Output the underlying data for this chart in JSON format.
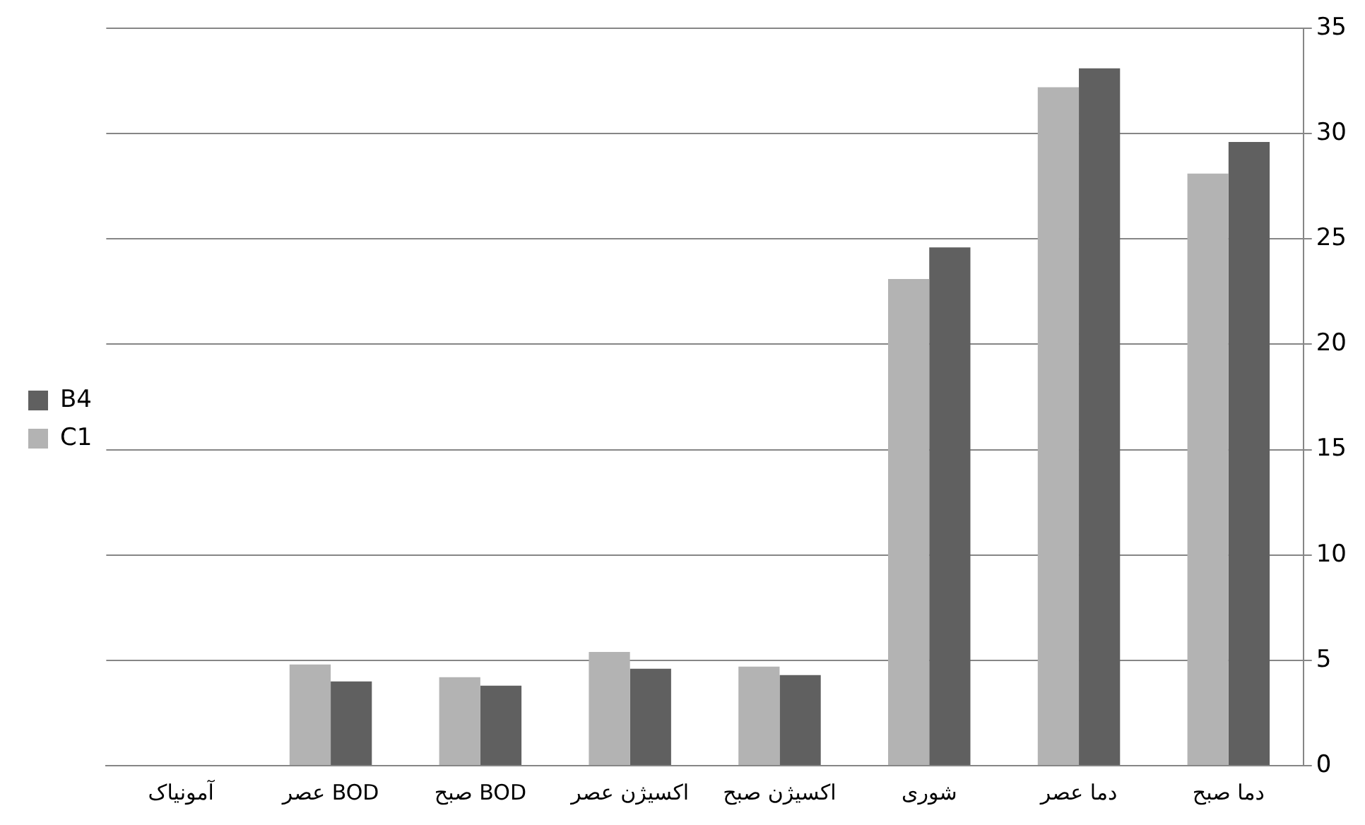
{
  "chart_data": {
    "type": "bar",
    "categories": [
      "آمونیاک",
      "عصر BOD",
      "صبح BOD",
      "اکسیژن عصر",
      "اکسیژن صبح",
      "شوری",
      "دما عصر",
      "دما صبح"
    ],
    "series": [
      {
        "name": "C1",
        "color": "#b3b3b3",
        "values": [
          0,
          4.8,
          4.2,
          5.4,
          4.7,
          23.1,
          32.2,
          28.1
        ]
      },
      {
        "name": "B4",
        "color": "#606060",
        "values": [
          0,
          4.0,
          3.8,
          4.6,
          4.3,
          24.6,
          33.1,
          29.6
        ]
      }
    ],
    "ylim": [
      0,
      35
    ],
    "yticks": [
      0,
      5,
      10,
      15,
      20,
      25,
      30,
      35
    ],
    "grid": "y",
    "legend": "left"
  }
}
